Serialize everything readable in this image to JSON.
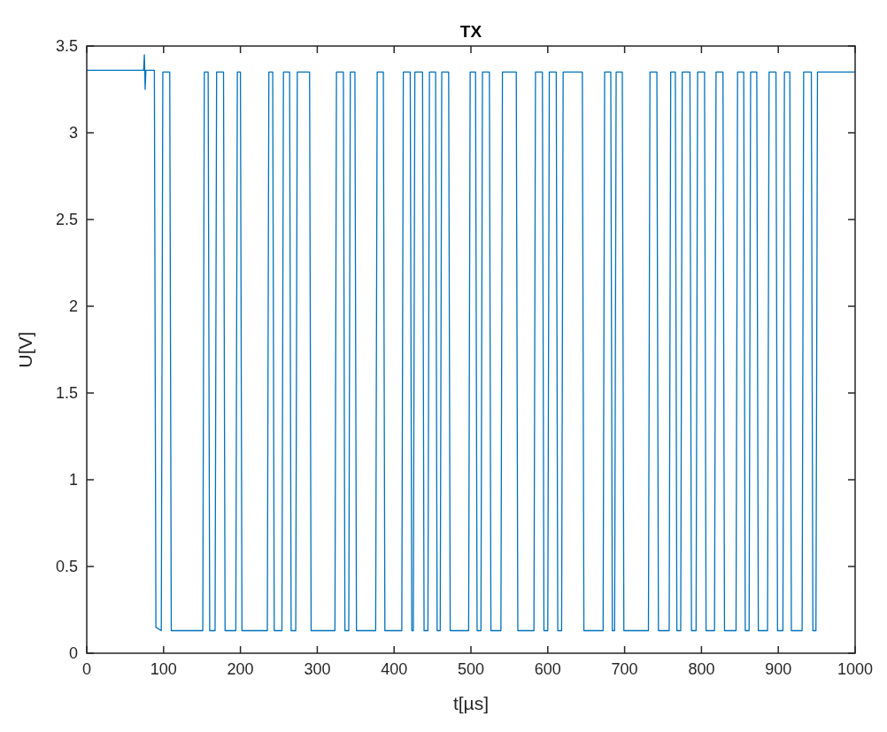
{
  "chart_data": {
    "type": "line",
    "title": "TX",
    "xlabel": "t[µs]",
    "ylabel": "U[V]",
    "xlim": [
      0,
      1000
    ],
    "xticks": [
      0,
      100,
      200,
      300,
      400,
      500,
      600,
      700,
      800,
      900,
      1000
    ],
    "ylim": [
      0,
      3.5
    ],
    "yticks": [
      0,
      0.5,
      1,
      1.5,
      2,
      2.5,
      3,
      3.5
    ],
    "series": [
      {
        "color": "#0072bd",
        "x": [
          0,
          74,
          75,
          76,
          77,
          88,
          90,
          97,
          99,
          108,
          110,
          151,
          153,
          158,
          160,
          167,
          169,
          178,
          180,
          194,
          196,
          200,
          202,
          235,
          237,
          242,
          244,
          254,
          256,
          264,
          266,
          272,
          274,
          290,
          292,
          323,
          325,
          334,
          336,
          341,
          343,
          349,
          351,
          376,
          378,
          386,
          388,
          410,
          412,
          421,
          423,
          425,
          427,
          437,
          439,
          444,
          446,
          454,
          456,
          460,
          462,
          471,
          473,
          497,
          499,
          506,
          508,
          513,
          515,
          524,
          526,
          539,
          541,
          559,
          561,
          582,
          584,
          593,
          595,
          600,
          602,
          611,
          613,
          618,
          620,
          645,
          647,
          672,
          674,
          682,
          684,
          687,
          689,
          697,
          699,
          731,
          733,
          742,
          744,
          758,
          760,
          766,
          768,
          773,
          775,
          785,
          787,
          793,
          795,
          804,
          806,
          817,
          819,
          828,
          830,
          845,
          847,
          855,
          857,
          862,
          864,
          872,
          874,
          886,
          888,
          897,
          899,
          906,
          908,
          915,
          917,
          931,
          933,
          943,
          945,
          949,
          951,
          1000
        ],
        "values": [
          3.36,
          3.36,
          3.45,
          3.25,
          3.36,
          3.36,
          0.15,
          0.13,
          3.35,
          3.35,
          0.13,
          0.13,
          3.35,
          3.35,
          0.13,
          0.13,
          3.35,
          3.35,
          0.13,
          0.13,
          3.35,
          3.35,
          0.13,
          0.13,
          3.35,
          3.35,
          0.13,
          0.13,
          3.35,
          3.35,
          0.13,
          0.13,
          3.35,
          3.35,
          0.13,
          0.13,
          3.35,
          3.35,
          0.13,
          0.13,
          3.35,
          3.35,
          0.13,
          0.13,
          3.35,
          3.35,
          0.13,
          0.13,
          3.35,
          3.35,
          0.13,
          0.13,
          3.35,
          3.35,
          0.13,
          0.13,
          3.35,
          3.35,
          0.13,
          0.13,
          3.35,
          3.35,
          0.13,
          0.13,
          3.35,
          3.35,
          0.13,
          0.13,
          3.35,
          3.35,
          0.13,
          0.13,
          3.35,
          3.35,
          0.13,
          0.13,
          3.35,
          3.35,
          0.13,
          0.13,
          3.35,
          3.35,
          0.13,
          0.13,
          3.35,
          3.35,
          0.13,
          0.13,
          3.35,
          3.35,
          0.13,
          0.13,
          3.35,
          3.35,
          0.13,
          0.13,
          3.35,
          3.35,
          0.13,
          0.13,
          3.35,
          3.35,
          0.13,
          0.13,
          3.35,
          3.35,
          0.13,
          0.13,
          3.35,
          3.35,
          0.13,
          0.13,
          3.35,
          3.35,
          0.13,
          0.13,
          3.35,
          3.35,
          0.13,
          0.13,
          3.35,
          3.35,
          0.13,
          0.13,
          3.35,
          3.35,
          0.13,
          0.13,
          3.35,
          3.35,
          0.13,
          0.13,
          3.35,
          3.35,
          0.13,
          0.13,
          3.35,
          3.35
        ]
      }
    ]
  }
}
